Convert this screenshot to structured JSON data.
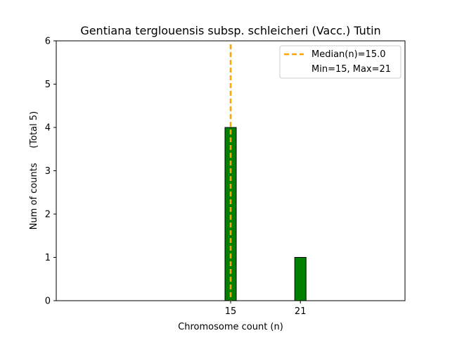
{
  "chart_data": {
    "type": "bar",
    "title": "Gentiana terglouensis subsp. schleicheri (Vacc.) Tutin",
    "xlabel": "Chromosome count (n)",
    "ylabel": "Num of counts     (Total 5)",
    "x_ticks": [
      "15",
      "21"
    ],
    "y_ticks": [
      "0",
      "1",
      "2",
      "3",
      "4",
      "5",
      "6"
    ],
    "ylim": [
      0,
      6
    ],
    "xlim": [
      0,
      30
    ],
    "bars": [
      {
        "x": 15,
        "value": 4
      },
      {
        "x": 21,
        "value": 1
      }
    ],
    "bar_color": "#008000",
    "baseline_extent": [
      0,
      24.5
    ],
    "median": {
      "x": 15.0,
      "label": "Median(n)=15.0",
      "color": "#ffa500"
    },
    "legend": {
      "placement": "top-right",
      "entries": [
        "Median(n)=15.0",
        "Min=15, Max=21"
      ]
    },
    "grid": false
  }
}
